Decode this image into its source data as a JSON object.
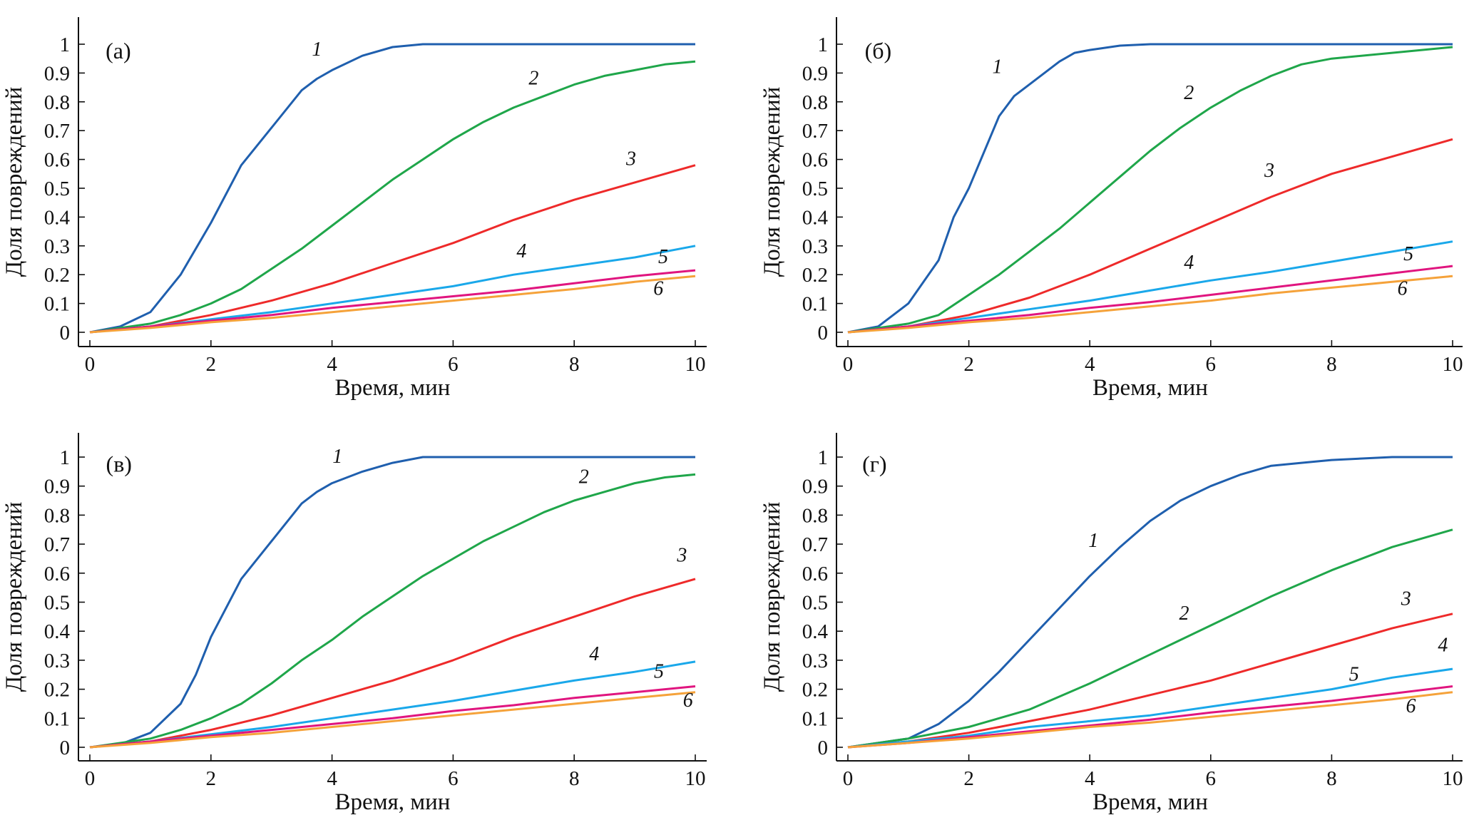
{
  "chart_data": [
    {
      "type": "line",
      "panel_label": "(а)",
      "xlabel": "Время, мин",
      "ylabel": "Доля повреждений",
      "xlim": [
        0,
        10
      ],
      "ylim": [
        0,
        1
      ],
      "xticks": [
        "0",
        "2",
        "4",
        "6",
        "8",
        "10"
      ],
      "yticks": [
        "0",
        "0.1",
        "0.2",
        "0.3",
        "0.4",
        "0.5",
        "0.6",
        "0.7",
        "0.8",
        "0.9",
        "1"
      ],
      "grid": false,
      "series": [
        {
          "name": "1",
          "color": "#1f5fae",
          "x": [
            0,
            0.5,
            1,
            1.5,
            2,
            2.5,
            3,
            3.5,
            3.75,
            4,
            4.5,
            5,
            5.5,
            6,
            8,
            10
          ],
          "y": [
            0,
            0.02,
            0.07,
            0.2,
            0.38,
            0.58,
            0.71,
            0.84,
            0.88,
            0.91,
            0.96,
            0.99,
            1,
            1,
            1,
            1
          ]
        },
        {
          "name": "2",
          "color": "#1fa64a",
          "x": [
            0,
            1,
            1.5,
            2,
            2.5,
            3,
            3.5,
            4,
            4.5,
            5,
            5.5,
            6,
            6.5,
            7,
            7.5,
            8,
            8.5,
            9,
            9.5,
            10
          ],
          "y": [
            0,
            0.03,
            0.06,
            0.1,
            0.15,
            0.22,
            0.29,
            0.37,
            0.45,
            0.53,
            0.6,
            0.67,
            0.73,
            0.78,
            0.82,
            0.86,
            0.89,
            0.91,
            0.93,
            0.94
          ]
        },
        {
          "name": "3",
          "color": "#ee2a2a",
          "x": [
            0,
            1,
            2,
            3,
            4,
            5,
            6,
            7,
            8,
            9,
            10
          ],
          "y": [
            0,
            0.02,
            0.06,
            0.11,
            0.17,
            0.24,
            0.31,
            0.39,
            0.46,
            0.52,
            0.58
          ]
        },
        {
          "name": "4",
          "color": "#1aa8ea",
          "x": [
            0,
            1,
            2,
            3,
            4,
            5,
            6,
            7,
            8,
            9,
            10
          ],
          "y": [
            0,
            0.02,
            0.045,
            0.07,
            0.1,
            0.13,
            0.16,
            0.2,
            0.23,
            0.26,
            0.3
          ]
        },
        {
          "name": "5",
          "color": "#e0157f",
          "x": [
            0,
            1,
            2,
            3,
            4,
            5,
            6,
            7,
            8,
            9,
            10
          ],
          "y": [
            0,
            0.02,
            0.04,
            0.06,
            0.085,
            0.105,
            0.125,
            0.145,
            0.17,
            0.195,
            0.215
          ]
        },
        {
          "name": "6",
          "color": "#f5a23a",
          "x": [
            0,
            1,
            2,
            3,
            4,
            5,
            6,
            7,
            8,
            9,
            10
          ],
          "y": [
            0,
            0.015,
            0.035,
            0.05,
            0.07,
            0.09,
            0.11,
            0.13,
            0.15,
            0.175,
            0.195
          ]
        }
      ]
    },
    {
      "type": "line",
      "panel_label": "(б)",
      "xlabel": "Время, мин",
      "ylabel": "Доля повреждений",
      "xlim": [
        0,
        10
      ],
      "ylim": [
        0,
        1
      ],
      "xticks": [
        "0",
        "2",
        "4",
        "6",
        "8",
        "10"
      ],
      "yticks": [
        "0",
        "0.1",
        "0.2",
        "0.3",
        "0.4",
        "0.5",
        "0.6",
        "0.7",
        "0.8",
        "0.9",
        "1"
      ],
      "grid": false,
      "series": [
        {
          "name": "1",
          "color": "#1f5fae",
          "x": [
            0,
            0.5,
            1,
            1.5,
            1.75,
            2,
            2.5,
            2.75,
            3,
            3.5,
            3.75,
            4,
            4.5,
            5,
            6,
            8,
            10
          ],
          "y": [
            0,
            0.02,
            0.1,
            0.25,
            0.4,
            0.5,
            0.75,
            0.82,
            0.86,
            0.94,
            0.97,
            0.98,
            0.995,
            1,
            1,
            1,
            1
          ]
        },
        {
          "name": "2",
          "color": "#1fa64a",
          "x": [
            0,
            1,
            1.5,
            2,
            2.5,
            3,
            3.5,
            4,
            4.5,
            5,
            5.5,
            6,
            6.5,
            7,
            7.5,
            8,
            9,
            10
          ],
          "y": [
            0,
            0.03,
            0.06,
            0.13,
            0.2,
            0.28,
            0.36,
            0.45,
            0.54,
            0.63,
            0.71,
            0.78,
            0.84,
            0.89,
            0.93,
            0.95,
            0.97,
            0.99
          ]
        },
        {
          "name": "3",
          "color": "#ee2a2a",
          "x": [
            0,
            1,
            2,
            3,
            4,
            5,
            6,
            7,
            8,
            9,
            10
          ],
          "y": [
            0,
            0.02,
            0.06,
            0.12,
            0.2,
            0.29,
            0.38,
            0.47,
            0.55,
            0.61,
            0.67
          ]
        },
        {
          "name": "4",
          "color": "#1aa8ea",
          "x": [
            0,
            1,
            2,
            3,
            4,
            5,
            6,
            7,
            8,
            9,
            10
          ],
          "y": [
            0,
            0.02,
            0.05,
            0.08,
            0.11,
            0.145,
            0.18,
            0.21,
            0.245,
            0.28,
            0.315
          ]
        },
        {
          "name": "5",
          "color": "#e0157f",
          "x": [
            0,
            1,
            2,
            3,
            4,
            5,
            6,
            7,
            8,
            9,
            10
          ],
          "y": [
            0,
            0.02,
            0.04,
            0.06,
            0.085,
            0.105,
            0.13,
            0.155,
            0.18,
            0.205,
            0.23
          ]
        },
        {
          "name": "6",
          "color": "#f5a23a",
          "x": [
            0,
            1,
            2,
            3,
            4,
            5,
            6,
            7,
            8,
            9,
            10
          ],
          "y": [
            0,
            0.015,
            0.035,
            0.05,
            0.07,
            0.09,
            0.11,
            0.135,
            0.155,
            0.175,
            0.195
          ]
        }
      ]
    },
    {
      "type": "line",
      "panel_label": "(в)",
      "xlabel": "Время, мин",
      "ylabel": "Доля повреждений",
      "xlim": [
        0,
        10
      ],
      "ylim": [
        0,
        1
      ],
      "xticks": [
        "0",
        "2",
        "4",
        "6",
        "8",
        "10"
      ],
      "yticks": [
        "0",
        "0.1",
        "0.2",
        "0.3",
        "0.4",
        "0.5",
        "0.6",
        "0.7",
        "0.8",
        "0.9",
        "1"
      ],
      "grid": false,
      "series": [
        {
          "name": "1",
          "color": "#1f5fae",
          "x": [
            0,
            0.5,
            1,
            1.5,
            1.75,
            2,
            2.5,
            3,
            3.5,
            3.75,
            4,
            4.5,
            5,
            5.5,
            6,
            8,
            10
          ],
          "y": [
            0,
            0.01,
            0.05,
            0.15,
            0.25,
            0.38,
            0.58,
            0.71,
            0.84,
            0.88,
            0.91,
            0.95,
            0.98,
            1,
            1,
            1,
            1
          ]
        },
        {
          "name": "2",
          "color": "#1fa64a",
          "x": [
            0,
            1,
            1.5,
            2,
            2.5,
            3,
            3.5,
            4,
            4.5,
            5,
            5.5,
            6,
            6.5,
            7,
            7.5,
            8,
            8.5,
            9,
            9.5,
            10
          ],
          "y": [
            0,
            0.03,
            0.06,
            0.1,
            0.15,
            0.22,
            0.3,
            0.37,
            0.45,
            0.52,
            0.59,
            0.65,
            0.71,
            0.76,
            0.81,
            0.85,
            0.88,
            0.91,
            0.93,
            0.94
          ]
        },
        {
          "name": "3",
          "color": "#ee2a2a",
          "x": [
            0,
            1,
            2,
            3,
            4,
            5,
            6,
            7,
            8,
            9,
            10
          ],
          "y": [
            0,
            0.02,
            0.06,
            0.11,
            0.17,
            0.23,
            0.3,
            0.38,
            0.45,
            0.52,
            0.58
          ]
        },
        {
          "name": "4",
          "color": "#1aa8ea",
          "x": [
            0,
            1,
            2,
            3,
            4,
            5,
            6,
            7,
            8,
            9,
            10
          ],
          "y": [
            0,
            0.02,
            0.045,
            0.07,
            0.1,
            0.13,
            0.16,
            0.195,
            0.23,
            0.26,
            0.295
          ]
        },
        {
          "name": "5",
          "color": "#e0157f",
          "x": [
            0,
            1,
            2,
            3,
            4,
            5,
            6,
            7,
            8,
            9,
            10
          ],
          "y": [
            0,
            0.02,
            0.04,
            0.06,
            0.08,
            0.1,
            0.125,
            0.145,
            0.17,
            0.19,
            0.21
          ]
        },
        {
          "name": "6",
          "color": "#f5a23a",
          "x": [
            0,
            1,
            2,
            3,
            4,
            5,
            6,
            7,
            8,
            9,
            10
          ],
          "y": [
            0,
            0.015,
            0.035,
            0.05,
            0.07,
            0.09,
            0.11,
            0.13,
            0.15,
            0.17,
            0.19
          ]
        }
      ]
    },
    {
      "type": "line",
      "panel_label": "(г)",
      "xlabel": "Время, мин",
      "ylabel": "Доля повреждений",
      "xlim": [
        0,
        10
      ],
      "ylim": [
        0,
        1
      ],
      "xticks": [
        "0",
        "2",
        "4",
        "6",
        "8",
        "10"
      ],
      "yticks": [
        "0",
        "0.1",
        "0.2",
        "0.3",
        "0.4",
        "0.5",
        "0.6",
        "0.7",
        "0.8",
        "0.9",
        "1"
      ],
      "grid": false,
      "series": [
        {
          "name": "1",
          "color": "#1f5fae",
          "x": [
            0,
            1,
            1.5,
            2,
            2.5,
            3,
            3.5,
            4,
            4.5,
            5,
            5.5,
            6,
            6.5,
            7,
            7.5,
            8,
            9,
            10
          ],
          "y": [
            0,
            0.03,
            0.08,
            0.16,
            0.26,
            0.37,
            0.48,
            0.59,
            0.69,
            0.78,
            0.85,
            0.9,
            0.94,
            0.97,
            0.98,
            0.99,
            1,
            1
          ]
        },
        {
          "name": "2",
          "color": "#1fa64a",
          "x": [
            0,
            1,
            2,
            3,
            4,
            5,
            6,
            7,
            8,
            9,
            10
          ],
          "y": [
            0,
            0.03,
            0.07,
            0.13,
            0.22,
            0.32,
            0.42,
            0.52,
            0.61,
            0.69,
            0.75
          ]
        },
        {
          "name": "3",
          "color": "#ee2a2a",
          "x": [
            0,
            1,
            2,
            3,
            4,
            5,
            6,
            7,
            8,
            9,
            10
          ],
          "y": [
            0,
            0.02,
            0.05,
            0.09,
            0.13,
            0.18,
            0.23,
            0.29,
            0.35,
            0.41,
            0.46
          ]
        },
        {
          "name": "4",
          "color": "#1aa8ea",
          "x": [
            0,
            1,
            2,
            3,
            4,
            5,
            6,
            7,
            8,
            9,
            10
          ],
          "y": [
            0,
            0.02,
            0.04,
            0.07,
            0.09,
            0.11,
            0.14,
            0.17,
            0.2,
            0.24,
            0.27
          ]
        },
        {
          "name": "5",
          "color": "#e0157f",
          "x": [
            0,
            1,
            2,
            3,
            4,
            5,
            6,
            7,
            8,
            9,
            10
          ],
          "y": [
            0,
            0.015,
            0.035,
            0.055,
            0.075,
            0.095,
            0.12,
            0.14,
            0.16,
            0.185,
            0.21
          ]
        },
        {
          "name": "6",
          "color": "#f5a23a",
          "x": [
            0,
            1,
            2,
            3,
            4,
            5,
            6,
            7,
            8,
            9,
            10
          ],
          "y": [
            0,
            0.015,
            0.03,
            0.05,
            0.07,
            0.085,
            0.105,
            0.125,
            0.145,
            0.165,
            0.19
          ]
        }
      ]
    }
  ]
}
